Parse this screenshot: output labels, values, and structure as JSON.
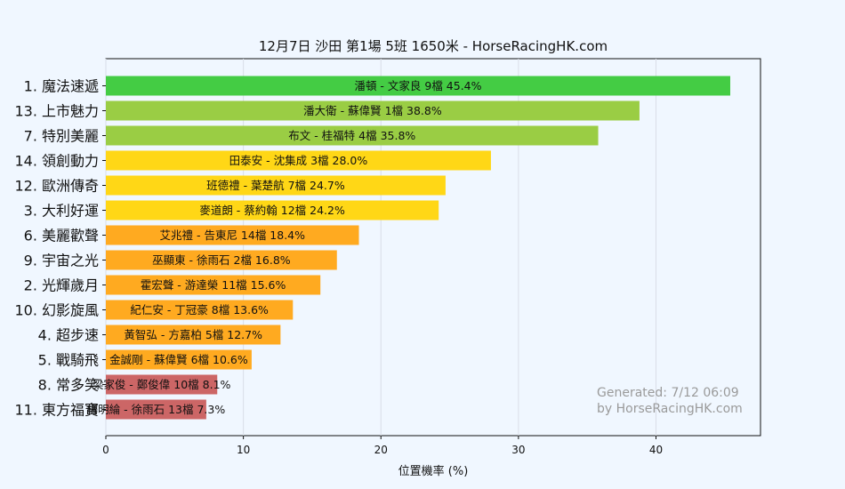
{
  "chart_data": {
    "type": "bar",
    "orientation": "horizontal",
    "title": "12月7日  沙田  第1場  5班  1650米 - HorseRacingHK.com",
    "xlabel": "位置機率 (%)",
    "xlim": [
      0,
      47.6
    ],
    "xticks": [
      0,
      10,
      20,
      30,
      40
    ],
    "grid": true,
    "categories": [
      "1. 魔法速遞",
      "13. 上市魅力",
      "7. 特別美麗",
      "14. 領創動力",
      "12. 歐洲傳奇",
      "3. 大利好運",
      "6. 美麗歡聲",
      "9. 宇宙之光",
      "2. 光輝歲月",
      "10. 幻影旋風",
      "4. 超步速",
      "5. 戰騎飛",
      "8. 常多笑",
      "11. 東方福寶"
    ],
    "values": [
      45.4,
      38.8,
      35.8,
      28.0,
      24.7,
      24.2,
      18.4,
      16.8,
      15.6,
      13.6,
      12.7,
      10.6,
      8.1,
      7.3
    ],
    "bar_labels": [
      "潘頓 - 文家良 9檔  45.4%",
      "潘大衛 - 蘇偉賢 1檔  38.8%",
      "布文 - 桂福特 4檔  35.8%",
      "田泰安 - 沈集成 3檔  28.0%",
      "班德禮 - 葉楚航 7檔  24.7%",
      "麥道朗 - 蔡約翰 12檔  24.2%",
      "艾兆禮 - 告東尼 14檔  18.4%",
      "巫顯東 - 徐雨石 2檔  16.8%",
      "霍宏聲 - 游達榮 11檔  15.6%",
      "紀仁安 - 丁冠豪 8檔  13.6%",
      "黃智弘 - 方嘉柏 5檔  12.7%",
      "金誠剛 - 蘇偉賢 6檔  10.6%",
      "梁家俊 - 鄭俊偉 10檔  8.1%",
      "楊明綸 - 徐雨石 13檔  7.3%"
    ],
    "colors": {
      "green": "#44cc44",
      "light_green": "#9acd44",
      "yellow": "#ffd716",
      "orange": "#ffaa20",
      "red": "#cc6666"
    },
    "bar_colors": [
      "green",
      "light_green",
      "light_green",
      "yellow",
      "yellow",
      "yellow",
      "orange",
      "orange",
      "orange",
      "orange",
      "orange",
      "orange",
      "red",
      "red"
    ],
    "watermark": [
      "Generated: 7/12 06:09",
      "by HorseRacingHK.com"
    ]
  }
}
